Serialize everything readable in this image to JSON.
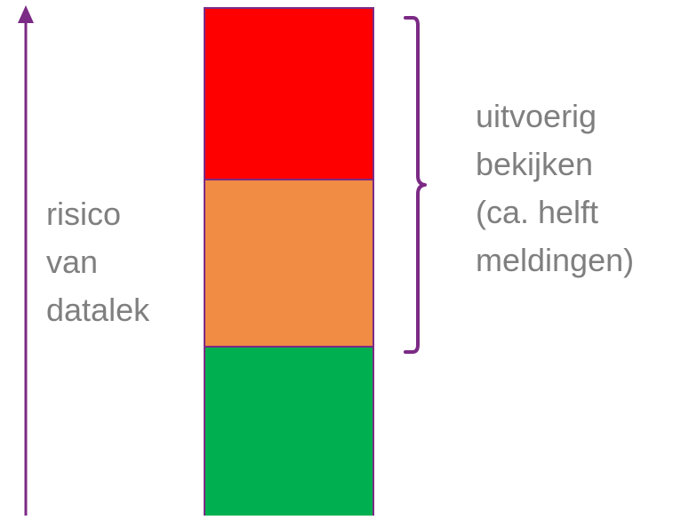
{
  "left_label": "risico\nvan\ndatalek",
  "right_label": "uitvoerig\nbekijken\n(ca. helft\nmeldingen)",
  "colors": {
    "arrow": "#7b2a85",
    "outline": "#7b2a85",
    "risk_high": "#ff0000",
    "risk_medium": "#f08c43",
    "risk_low": "#00b050",
    "text": "#7f7f7f"
  },
  "icons": {
    "arrow": "upward-arrow",
    "bracket": "right-curly-brace"
  }
}
